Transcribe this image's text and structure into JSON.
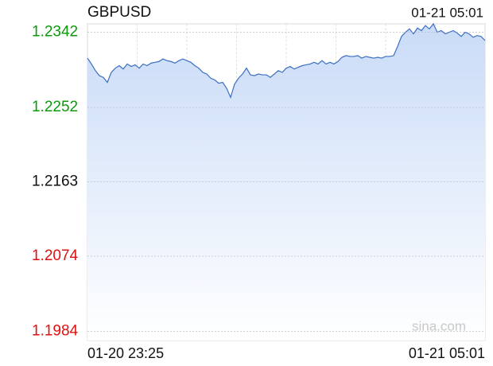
{
  "chart_data": {
    "type": "line",
    "title": "GBPUSD",
    "timestamp": "01-21 05:01",
    "watermark": "sina.com",
    "x_labels": [
      "01-20 23:25",
      "01-21 05:01"
    ],
    "ylim": [
      1.1973,
      1.2352
    ],
    "yticks": [
      1.2342,
      1.2252,
      1.2163,
      1.2074,
      1.1984
    ],
    "ytick_colors": [
      "#0a9a0a",
      "#0a9a0a",
      "#111111",
      "#e01010",
      "#e01010"
    ],
    "grid": true,
    "xgrid_divisions": 8,
    "color": "#3b6fc1",
    "fill_color": "#c9dbf7",
    "values": [
      1.2311,
      1.2304,
      1.2296,
      1.229,
      1.2288,
      1.2282,
      1.2294,
      1.2299,
      1.2302,
      1.2298,
      1.2304,
      1.2301,
      1.2303,
      1.2299,
      1.2304,
      1.2302,
      1.2305,
      1.2306,
      1.2307,
      1.231,
      1.2308,
      1.2307,
      1.2305,
      1.2308,
      1.231,
      1.2308,
      1.2306,
      1.2302,
      1.2299,
      1.2294,
      1.2292,
      1.2287,
      1.2285,
      1.2281,
      1.2282,
      1.2275,
      1.2264,
      1.228,
      1.2287,
      1.2292,
      1.2299,
      1.2291,
      1.229,
      1.2292,
      1.2291,
      1.2291,
      1.2288,
      1.2292,
      1.2296,
      1.2294,
      1.2299,
      1.2301,
      1.2298,
      1.23,
      1.2302,
      1.2303,
      1.2304,
      1.2306,
      1.2304,
      1.2308,
      1.2304,
      1.2306,
      1.2304,
      1.2307,
      1.2312,
      1.2314,
      1.2313,
      1.2313,
      1.2314,
      1.2311,
      1.2313,
      1.2312,
      1.2311,
      1.2312,
      1.2311,
      1.2313,
      1.2313,
      1.2314,
      1.2325,
      1.2337,
      1.2342,
      1.2346,
      1.234,
      1.2347,
      1.2344,
      1.235,
      1.2346,
      1.2352,
      1.2342,
      1.2344,
      1.234,
      1.2342,
      1.2344,
      1.2341,
      1.2337,
      1.2342,
      1.234,
      1.2336,
      1.2338,
      1.2337,
      1.2332
    ]
  }
}
